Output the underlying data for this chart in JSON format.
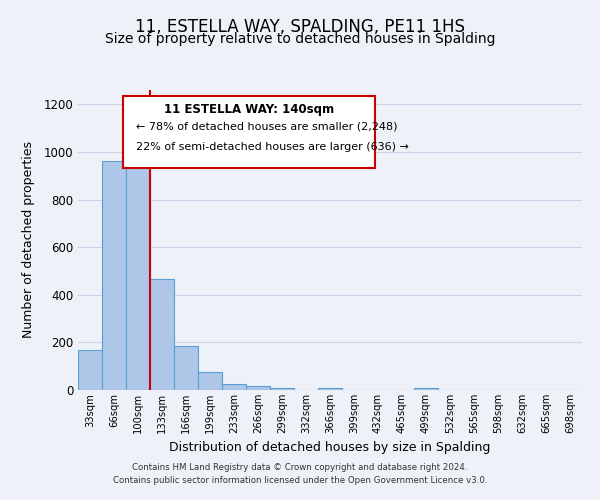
{
  "title": "11, ESTELLA WAY, SPALDING, PE11 1HS",
  "subtitle": "Size of property relative to detached houses in Spalding",
  "xlabel": "Distribution of detached houses by size in Spalding",
  "ylabel": "Number of detached properties",
  "categories": [
    "33sqm",
    "66sqm",
    "100sqm",
    "133sqm",
    "166sqm",
    "199sqm",
    "233sqm",
    "266sqm",
    "299sqm",
    "332sqm",
    "366sqm",
    "399sqm",
    "432sqm",
    "465sqm",
    "499sqm",
    "532sqm",
    "565sqm",
    "598sqm",
    "632sqm",
    "665sqm",
    "698sqm"
  ],
  "bar_heights": [
    170,
    960,
    1000,
    465,
    185,
    75,
    25,
    15,
    10,
    0,
    10,
    0,
    0,
    0,
    10,
    0,
    0,
    0,
    0,
    0,
    0
  ],
  "bar_color": "#aec6e8",
  "bar_edge_color": "#5a9fd4",
  "red_line_color": "#cc0000",
  "red_line_index": 3,
  "ylim": [
    0,
    1260
  ],
  "yticks": [
    0,
    200,
    400,
    600,
    800,
    1000,
    1200
  ],
  "annotation_title": "11 ESTELLA WAY: 140sqm",
  "annotation_line1": "← 78% of detached houses are smaller (2,248)",
  "annotation_line2": "22% of semi-detached houses are larger (636) →",
  "footer_line1": "Contains HM Land Registry data © Crown copyright and database right 2024.",
  "footer_line2": "Contains public sector information licensed under the Open Government Licence v3.0.",
  "bg_color": "#eef2f8",
  "plot_bg_color": "#eef2f8",
  "grid_color": "#c8d4e8",
  "title_fontsize": 12,
  "subtitle_fontsize": 10,
  "ylabel_fontsize": 9,
  "xlabel_fontsize": 9
}
